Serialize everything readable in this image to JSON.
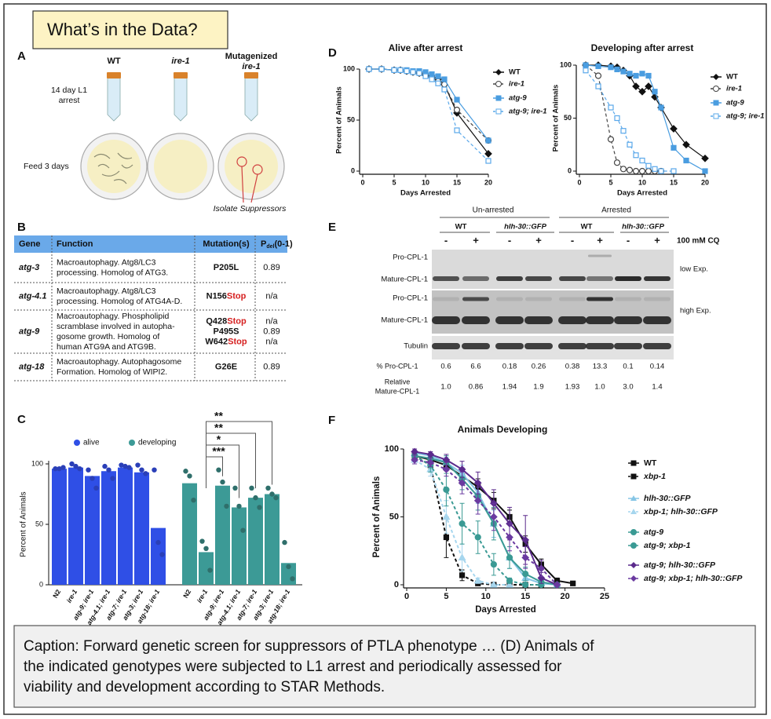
{
  "header": {
    "title": "What’s in the Data?"
  },
  "panel_a": {
    "letter": "A",
    "tubes": [
      "WT",
      "ire-1",
      {
        "line1": "Mutagenized",
        "line2": "ire-1"
      }
    ],
    "arrest_label": [
      "14 day L1",
      "arrest"
    ],
    "feed_label": "Feed 3 days",
    "suppressor_label": "Isolate Suppressors"
  },
  "panel_b": {
    "letter": "B",
    "columns": [
      "Gene",
      "Function",
      "Mutation(s)",
      {
        "main": "P",
        "sub": "del",
        "rest": "(0-1)"
      }
    ],
    "rows": [
      {
        "gene": "atg-3",
        "function": [
          "Macroautophagy. Atg8/LC3",
          "processing. Homolog of ATG3."
        ],
        "mutations": [
          {
            "base": "P205L"
          }
        ],
        "pdel": [
          "0.89"
        ]
      },
      {
        "gene": "atg-4.1",
        "function": [
          "Macroautophagy. Atg8/LC3",
          "processing. Homolog of ATG4A-D."
        ],
        "mutations": [
          {
            "base": "N156",
            "stop": "Stop"
          }
        ],
        "pdel": [
          "n/a"
        ]
      },
      {
        "gene": "atg-9",
        "function": [
          "Macroautophagy. Phospholipid",
          "scramblase involved in autopha-",
          "gosome growth. Homolog of",
          "human ATG9A and ATG9B."
        ],
        "mutations": [
          {
            "base": "Q428",
            "stop": "Stop"
          },
          {
            "base": "P495S"
          },
          {
            "base": "W642",
            "stop": "Stop"
          }
        ],
        "pdel": [
          "n/a",
          "0.89",
          "n/a"
        ]
      },
      {
        "gene": "atg-18",
        "function": [
          "Macroautophagy. Autophagosome",
          "Formation. Homolog of WIPI2."
        ],
        "mutations": [
          {
            "base": "G26E"
          }
        ],
        "pdel": [
          "0.89"
        ]
      }
    ]
  },
  "panel_e": {
    "letter": "E",
    "groups": [
      "Un-arrested",
      "Arrested"
    ],
    "genotypes": [
      "WT",
      "hlh-30::GFP",
      "WT",
      "hlh-30::GFP"
    ],
    "treatment": [
      "-",
      "+",
      "-",
      "+",
      "-",
      "+",
      "-",
      "+"
    ],
    "treatment_label": "100 mM CQ",
    "bands": [
      "Pro-CPL-1",
      "Mature-CPL-1",
      "Pro-CPL-1",
      "Mature-CPL-1",
      "Tubulin"
    ],
    "exposures": [
      "low Exp.",
      "high Exp."
    ],
    "quant": [
      {
        "label": [
          "% Pro-CPL-1"
        ],
        "values": [
          "0.6",
          "6.6",
          "0.18",
          "0.26",
          "0.38",
          "13.3",
          "0.1",
          "0.14"
        ]
      },
      {
        "label": [
          "Relative",
          "Mature-CPL-1"
        ],
        "values": [
          "1.0",
          "0.86",
          "1.94",
          "1.9",
          "1.93",
          "1.0",
          "3.0",
          "1.4"
        ]
      }
    ]
  },
  "chart_data": [
    {
      "type": "bar",
      "letter": "C",
      "ylabel": "Percent of Animals",
      "ylim": [
        0,
        100
      ],
      "yticks": [
        0,
        50,
        100
      ],
      "categories": [
        "N2",
        "ire-1",
        "atg-9; ire-1",
        "atg-4.1; ire-1",
        "atg-7; ire-1",
        "atg-3; ire-1",
        "atg-18; ire-1"
      ],
      "series": [
        {
          "name": "alive",
          "color": "#2f4fe6",
          "values": [
            96,
            97,
            90,
            94,
            97,
            93,
            47
          ],
          "replicates": [
            [
              96,
              96,
              97
            ],
            [
              100,
              98,
              96
            ],
            [
              95,
              88,
              80
            ],
            [
              98,
              95,
              88
            ],
            [
              99,
              98,
              97
            ],
            [
              99,
              95,
              92
            ],
            [
              95,
              35,
              25
            ]
          ]
        },
        {
          "name": "developing",
          "color": "#3c9a96",
          "values": [
            84,
            27,
            82,
            64,
            72,
            75,
            18
          ],
          "replicates": [
            [
              94,
              90,
              70
            ],
            [
              36,
              30,
              12
            ],
            [
              95,
              85,
              65
            ],
            [
              80,
              65,
              45
            ],
            [
              80,
              72,
              64
            ],
            [
              80,
              75,
              72
            ],
            [
              35,
              15,
              5
            ]
          ]
        }
      ],
      "significance": [
        "***",
        "*",
        "**",
        "**"
      ]
    },
    {
      "type": "line",
      "letter": "D",
      "title": "Alive after arrest",
      "xlabel": "Days Arrested",
      "ylabel": "Percent of Animals",
      "xlim": [
        0,
        20
      ],
      "xticks": [
        0,
        5,
        10,
        15,
        20
      ],
      "ylim": [
        0,
        100
      ],
      "yticks": [
        0,
        50,
        100
      ],
      "x": [
        1,
        3,
        5,
        6,
        7,
        8,
        9,
        10,
        11,
        12,
        13,
        15,
        20
      ],
      "series": [
        {
          "name": "WT",
          "color": "#111111",
          "marker": "diamond",
          "line_style": "solid",
          "values": [
            100,
            100,
            99,
            99,
            98,
            97,
            96,
            94,
            92,
            90,
            85,
            57,
            17
          ]
        },
        {
          "name": "ire-1",
          "color": "#444444",
          "marker": "open-circle",
          "line_style": "dashed",
          "values": [
            100,
            100,
            99,
            99,
            98,
            97,
            96,
            95,
            93,
            88,
            85,
            60,
            30
          ]
        },
        {
          "name": "atg-9",
          "color": "#4a9de0",
          "marker": "square",
          "line_style": "solid",
          "values": [
            100,
            100,
            99,
            99,
            99,
            98,
            98,
            97,
            95,
            93,
            90,
            70,
            30
          ]
        },
        {
          "name": "atg-9; ire-1",
          "color": "#5aa8ea",
          "marker": "open-square",
          "line_style": "dashed",
          "values": [
            100,
            100,
            99,
            99,
            98,
            97,
            96,
            93,
            90,
            86,
            80,
            40,
            10
          ]
        }
      ]
    },
    {
      "type": "line",
      "title": "Developing after arrest",
      "xlabel": "Days Arrested",
      "ylabel": "Percent of Animals",
      "xlim": [
        0,
        20
      ],
      "xticks": [
        0,
        5,
        10,
        15,
        20
      ],
      "ylim": [
        0,
        100
      ],
      "yticks": [
        0,
        50,
        100
      ],
      "x": [
        1,
        3,
        5,
        6,
        7,
        8,
        9,
        10,
        11,
        12,
        13,
        15,
        17,
        20
      ],
      "series": [
        {
          "name": "WT",
          "color": "#111111",
          "marker": "diamond",
          "line_style": "solid",
          "values": [
            100,
            100,
            99,
            98,
            95,
            90,
            80,
            75,
            80,
            70,
            60,
            40,
            25,
            12
          ]
        },
        {
          "name": "ire-1",
          "color": "#444444",
          "marker": "open-circle",
          "line_style": "dashed",
          "values": [
            100,
            90,
            30,
            8,
            2,
            1,
            0,
            0,
            0,
            0,
            0,
            null,
            null,
            null
          ]
        },
        {
          "name": "atg-9",
          "color": "#4a9de0",
          "marker": "square",
          "line_style": "solid",
          "values": [
            100,
            99,
            98,
            96,
            94,
            92,
            90,
            92,
            90,
            75,
            60,
            22,
            10,
            0
          ]
        },
        {
          "name": "atg-9; ire-1",
          "color": "#5aa8ea",
          "marker": "open-square",
          "line_style": "dashed",
          "values": [
            95,
            80,
            60,
            50,
            38,
            25,
            15,
            10,
            5,
            2,
            0,
            0,
            null,
            null
          ]
        }
      ]
    },
    {
      "type": "line",
      "letter": "F",
      "title": "Animals Developing",
      "xlabel": "Days Arrested",
      "ylabel": "Percent of Animals",
      "xlim": [
        0,
        25
      ],
      "xticks": [
        0,
        5,
        10,
        15,
        20,
        25
      ],
      "ylim": [
        0,
        100
      ],
      "yticks": [
        0,
        50,
        100
      ],
      "x": [
        1,
        3,
        5,
        7,
        9,
        11,
        13,
        15,
        17,
        19,
        21
      ],
      "series": [
        {
          "name": "WT",
          "color": "#111111",
          "marker": "square",
          "line_style": "solid",
          "values": [
            95,
            92,
            88,
            80,
            72,
            62,
            50,
            30,
            15,
            3,
            1
          ],
          "errors": [
            3,
            3,
            4,
            6,
            6,
            6,
            5,
            6,
            4,
            2,
            null
          ]
        },
        {
          "name": "xbp-1",
          "color": "#111111",
          "marker": "square",
          "line_style": "dashed",
          "values": [
            95,
            88,
            35,
            7,
            1,
            0,
            0,
            0,
            0,
            null,
            null
          ],
          "errors": [
            2,
            3,
            15,
            4,
            null,
            null,
            null,
            null,
            null,
            null,
            null
          ]
        },
        {
          "name": "hlh-30::GFP",
          "color": "#86c6e6",
          "marker": "triangle",
          "line_style": "solid",
          "values": [
            97,
            95,
            90,
            82,
            68,
            45,
            20,
            5,
            1,
            0,
            null
          ],
          "errors": [
            2,
            3,
            4,
            6,
            8,
            10,
            8,
            4,
            null,
            null,
            null
          ]
        },
        {
          "name": "xbp-1; hlh-30::GFP",
          "color": "#a6d6ee",
          "marker": "triangle",
          "line_style": "dashed",
          "values": [
            92,
            85,
            50,
            20,
            3,
            0,
            0,
            null,
            null,
            null,
            null
          ],
          "errors": [
            3,
            5,
            12,
            10,
            2,
            null,
            null,
            null,
            null,
            null,
            null
          ]
        },
        {
          "name": "atg-9",
          "color": "#3a9a94",
          "marker": "circle",
          "line_style": "solid",
          "values": [
            95,
            93,
            90,
            78,
            65,
            45,
            20,
            8,
            2,
            0,
            null
          ],
          "errors": [
            3,
            3,
            5,
            8,
            10,
            12,
            8,
            5,
            null,
            null,
            null
          ]
        },
        {
          "name": "atg-9; xbp-1",
          "color": "#3a9a94",
          "marker": "circle",
          "line_style": "dashed",
          "values": [
            95,
            88,
            70,
            45,
            35,
            15,
            3,
            0,
            0,
            null,
            null
          ],
          "errors": [
            3,
            5,
            12,
            15,
            12,
            8,
            2,
            null,
            null,
            null,
            null
          ]
        },
        {
          "name": "atg-9; hlh-30::GFP",
          "color": "#5b2a8c",
          "marker": "diamond",
          "line_style": "solid",
          "values": [
            98,
            96,
            92,
            85,
            75,
            60,
            45,
            33,
            5,
            0,
            null
          ],
          "errors": [
            2,
            2,
            4,
            6,
            8,
            10,
            12,
            18,
            4,
            null,
            null
          ]
        },
        {
          "name": "atg-9; xbp-1; hlh-30::GFP",
          "color": "#6a3aa0",
          "marker": "diamond",
          "line_style": "dashed",
          "values": [
            92,
            90,
            85,
            75,
            62,
            50,
            35,
            20,
            12,
            0,
            null
          ],
          "errors": [
            3,
            3,
            5,
            8,
            10,
            10,
            10,
            8,
            6,
            null,
            null
          ]
        }
      ]
    }
  ],
  "caption": [
    "Caption: Forward genetic screen for suppressors of PTLA phenotype … (D) Animals of",
    "the indicated genotypes were subjected to L1 arrest and periodically assessed for",
    "viability and development according to STAR Methods."
  ]
}
